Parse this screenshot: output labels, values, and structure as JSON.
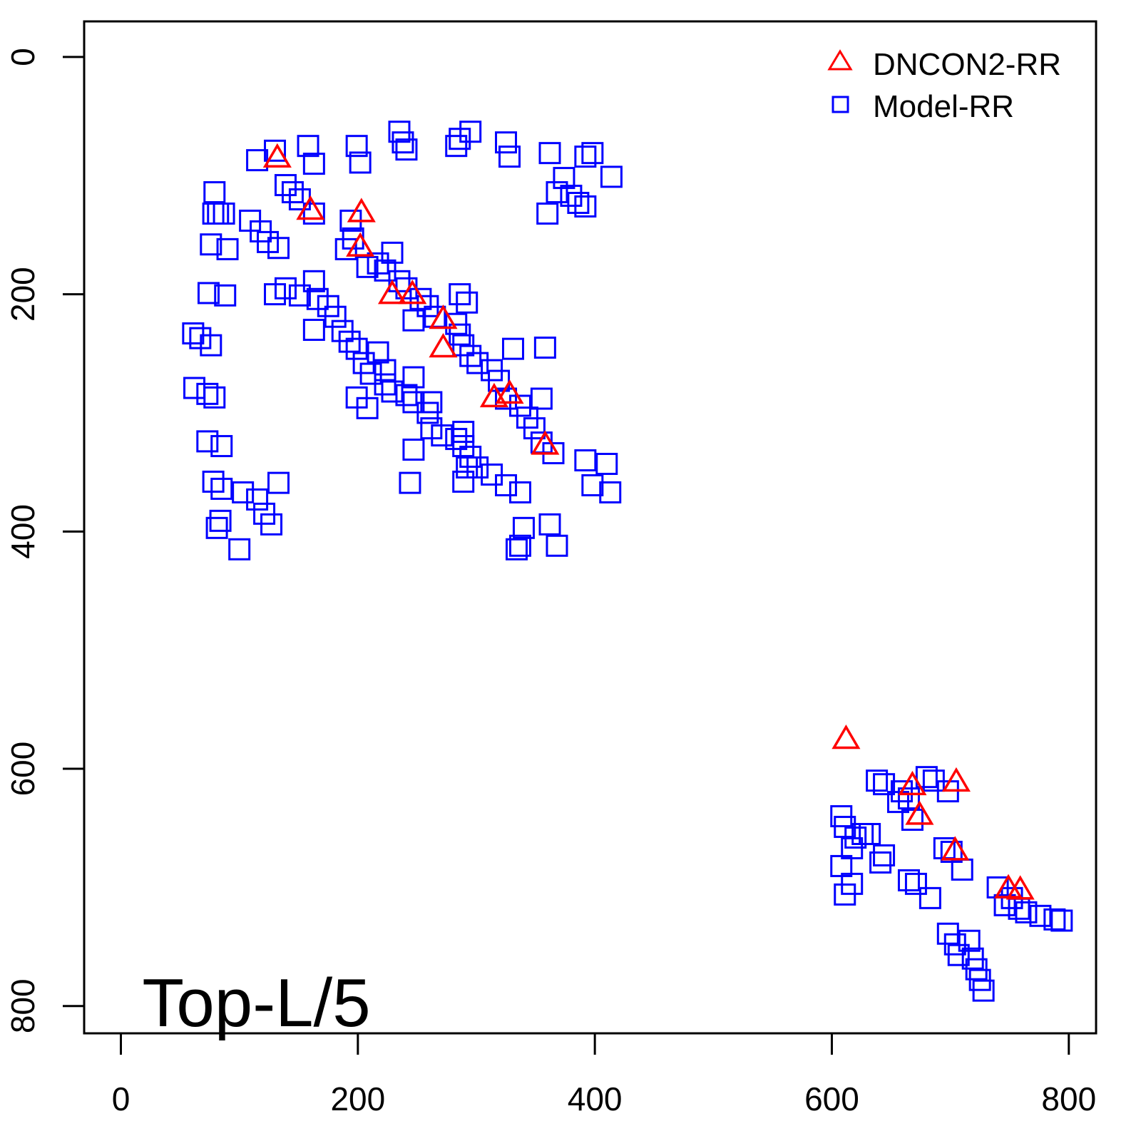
{
  "chart_data": {
    "type": "scatter",
    "title": "",
    "xlabel": "",
    "ylabel": "",
    "xlim": [
      -31,
      823
    ],
    "ylim": [
      823,
      -30
    ],
    "y_inverted": true,
    "grid": false,
    "x_ticks": [
      0,
      200,
      400,
      600,
      800
    ],
    "y_ticks": [
      0,
      200,
      400,
      600,
      800
    ],
    "x_tick_labels": [
      "0",
      "200",
      "400",
      "600",
      "800"
    ],
    "y_tick_labels": [
      "0",
      "200",
      "400",
      "600",
      "800"
    ],
    "annotation": {
      "text": "Top-L/5",
      "x": 18,
      "y": 790
    },
    "legend": {
      "placement": "top-right",
      "entries": [
        {
          "label": "DNCON2-RR",
          "marker": "triangle",
          "color": "#ff0000"
        },
        {
          "label": "Model-RR",
          "marker": "square",
          "color": "#0000ff"
        }
      ]
    },
    "series": [
      {
        "name": "DNCON2-RR",
        "marker": "triangle",
        "color": "#ff0000",
        "points": [
          [
            132,
            85
          ],
          [
            160,
            129
          ],
          [
            203,
            131
          ],
          [
            202,
            160
          ],
          [
            229,
            200
          ],
          [
            246,
            200
          ],
          [
            272,
            221
          ],
          [
            272,
            245
          ],
          [
            315,
            287
          ],
          [
            328,
            284
          ],
          [
            358,
            327
          ],
          [
            612,
            575
          ],
          [
            668,
            614
          ],
          [
            674,
            639
          ],
          [
            705,
            611
          ],
          [
            704,
            669
          ],
          [
            749,
            701
          ],
          [
            759,
            702
          ]
        ]
      },
      {
        "name": "Model-RR",
        "marker": "square",
        "color": "#0000ff",
        "points": [
          [
            79,
            114
          ],
          [
            82,
            132
          ],
          [
            87,
            132
          ],
          [
            78,
            132
          ],
          [
            76,
            158
          ],
          [
            90,
            162
          ],
          [
            74,
            199
          ],
          [
            88,
            201
          ],
          [
            61,
            233
          ],
          [
            67,
            237
          ],
          [
            76,
            243
          ],
          [
            62,
            279
          ],
          [
            73,
            284
          ],
          [
            79,
            287
          ],
          [
            73,
            324
          ],
          [
            85,
            328
          ],
          [
            78,
            358
          ],
          [
            85,
            364
          ],
          [
            81,
            397
          ],
          [
            100,
            415
          ],
          [
            84,
            391
          ],
          [
            103,
            367
          ],
          [
            115,
            373
          ],
          [
            121,
            385
          ],
          [
            127,
            394
          ],
          [
            133,
            359
          ],
          [
            115,
            87
          ],
          [
            130,
            79
          ],
          [
            139,
            108
          ],
          [
            145,
            114
          ],
          [
            151,
            120
          ],
          [
            163,
            132
          ],
          [
            109,
            138
          ],
          [
            118,
            147
          ],
          [
            124,
            156
          ],
          [
            133,
            161
          ],
          [
            158,
            75
          ],
          [
            163,
            90
          ],
          [
            199,
            75
          ],
          [
            202,
            89
          ],
          [
            194,
            138
          ],
          [
            196,
            153
          ],
          [
            190,
            162
          ],
          [
            208,
            177
          ],
          [
            217,
            174
          ],
          [
            229,
            165
          ],
          [
            223,
            180
          ],
          [
            235,
            189
          ],
          [
            241,
            195
          ],
          [
            253,
            204
          ],
          [
            259,
            210
          ],
          [
            265,
            219
          ],
          [
            283,
            225
          ],
          [
            286,
            234
          ],
          [
            289,
            243
          ],
          [
            295,
            252
          ],
          [
            301,
            258
          ],
          [
            313,
            264
          ],
          [
            319,
            273
          ],
          [
            325,
            288
          ],
          [
            337,
            294
          ],
          [
            343,
            304
          ],
          [
            349,
            313
          ],
          [
            355,
            325
          ],
          [
            365,
            334
          ],
          [
            292,
            207
          ],
          [
            286,
            200
          ],
          [
            247,
            222
          ],
          [
            331,
            246
          ],
          [
            358,
            245
          ],
          [
            355,
            288
          ],
          [
            130,
            200
          ],
          [
            139,
            195
          ],
          [
            151,
            201
          ],
          [
            163,
            189
          ],
          [
            166,
            204
          ],
          [
            175,
            210
          ],
          [
            181,
            219
          ],
          [
            187,
            231
          ],
          [
            193,
            240
          ],
          [
            199,
            246
          ],
          [
            205,
            258
          ],
          [
            211,
            267
          ],
          [
            223,
            276
          ],
          [
            229,
            282
          ],
          [
            241,
            285
          ],
          [
            247,
            291
          ],
          [
            259,
            300
          ],
          [
            262,
            313
          ],
          [
            271,
            319
          ],
          [
            283,
            322
          ],
          [
            289,
            328
          ],
          [
            295,
            337
          ],
          [
            301,
            346
          ],
          [
            313,
            352
          ],
          [
            325,
            361
          ],
          [
            337,
            367
          ],
          [
            247,
            270
          ],
          [
            262,
            291
          ],
          [
            199,
            287
          ],
          [
            208,
            296
          ],
          [
            163,
            230
          ],
          [
            247,
            331
          ],
          [
            289,
            316
          ],
          [
            292,
            346
          ],
          [
            289,
            358
          ],
          [
            244,
            359
          ],
          [
            217,
            249
          ],
          [
            223,
            264
          ],
          [
            392,
            340
          ],
          [
            398,
            361
          ],
          [
            410,
            343
          ],
          [
            413,
            367
          ],
          [
            392,
            84
          ],
          [
            398,
            81
          ],
          [
            414,
            101
          ],
          [
            362,
            81
          ],
          [
            374,
            102
          ],
          [
            368,
            114
          ],
          [
            380,
            117
          ],
          [
            386,
            123
          ],
          [
            392,
            126
          ],
          [
            360,
            132
          ],
          [
            325,
            72
          ],
          [
            328,
            84
          ],
          [
            295,
            63
          ],
          [
            286,
            69
          ],
          [
            283,
            75
          ],
          [
            235,
            63
          ],
          [
            238,
            72
          ],
          [
            241,
            78
          ],
          [
            340,
            397
          ],
          [
            337,
            412
          ],
          [
            362,
            394
          ],
          [
            368,
            412
          ],
          [
            334,
            415
          ],
          [
            608,
            640
          ],
          [
            611,
            649
          ],
          [
            608,
            682
          ],
          [
            611,
            706
          ],
          [
            617,
            697
          ],
          [
            617,
            667
          ],
          [
            620,
            658
          ],
          [
            626,
            655
          ],
          [
            632,
            655
          ],
          [
            644,
            673
          ],
          [
            641,
            679
          ],
          [
            638,
            610
          ],
          [
            644,
            613
          ],
          [
            656,
            628
          ],
          [
            659,
            619
          ],
          [
            665,
            625
          ],
          [
            668,
            643
          ],
          [
            680,
            607
          ],
          [
            686,
            610
          ],
          [
            698,
            619
          ],
          [
            695,
            667
          ],
          [
            701,
            670
          ],
          [
            710,
            685
          ],
          [
            665,
            694
          ],
          [
            671,
            697
          ],
          [
            683,
            709
          ],
          [
            698,
            739
          ],
          [
            704,
            748
          ],
          [
            707,
            757
          ],
          [
            716,
            745
          ],
          [
            719,
            760
          ],
          [
            722,
            769
          ],
          [
            725,
            778
          ],
          [
            728,
            787
          ],
          [
            740,
            700
          ],
          [
            746,
            715
          ],
          [
            752,
            709
          ],
          [
            758,
            718
          ],
          [
            764,
            721
          ],
          [
            776,
            724
          ],
          [
            788,
            727
          ],
          [
            794,
            728
          ]
        ]
      }
    ]
  }
}
